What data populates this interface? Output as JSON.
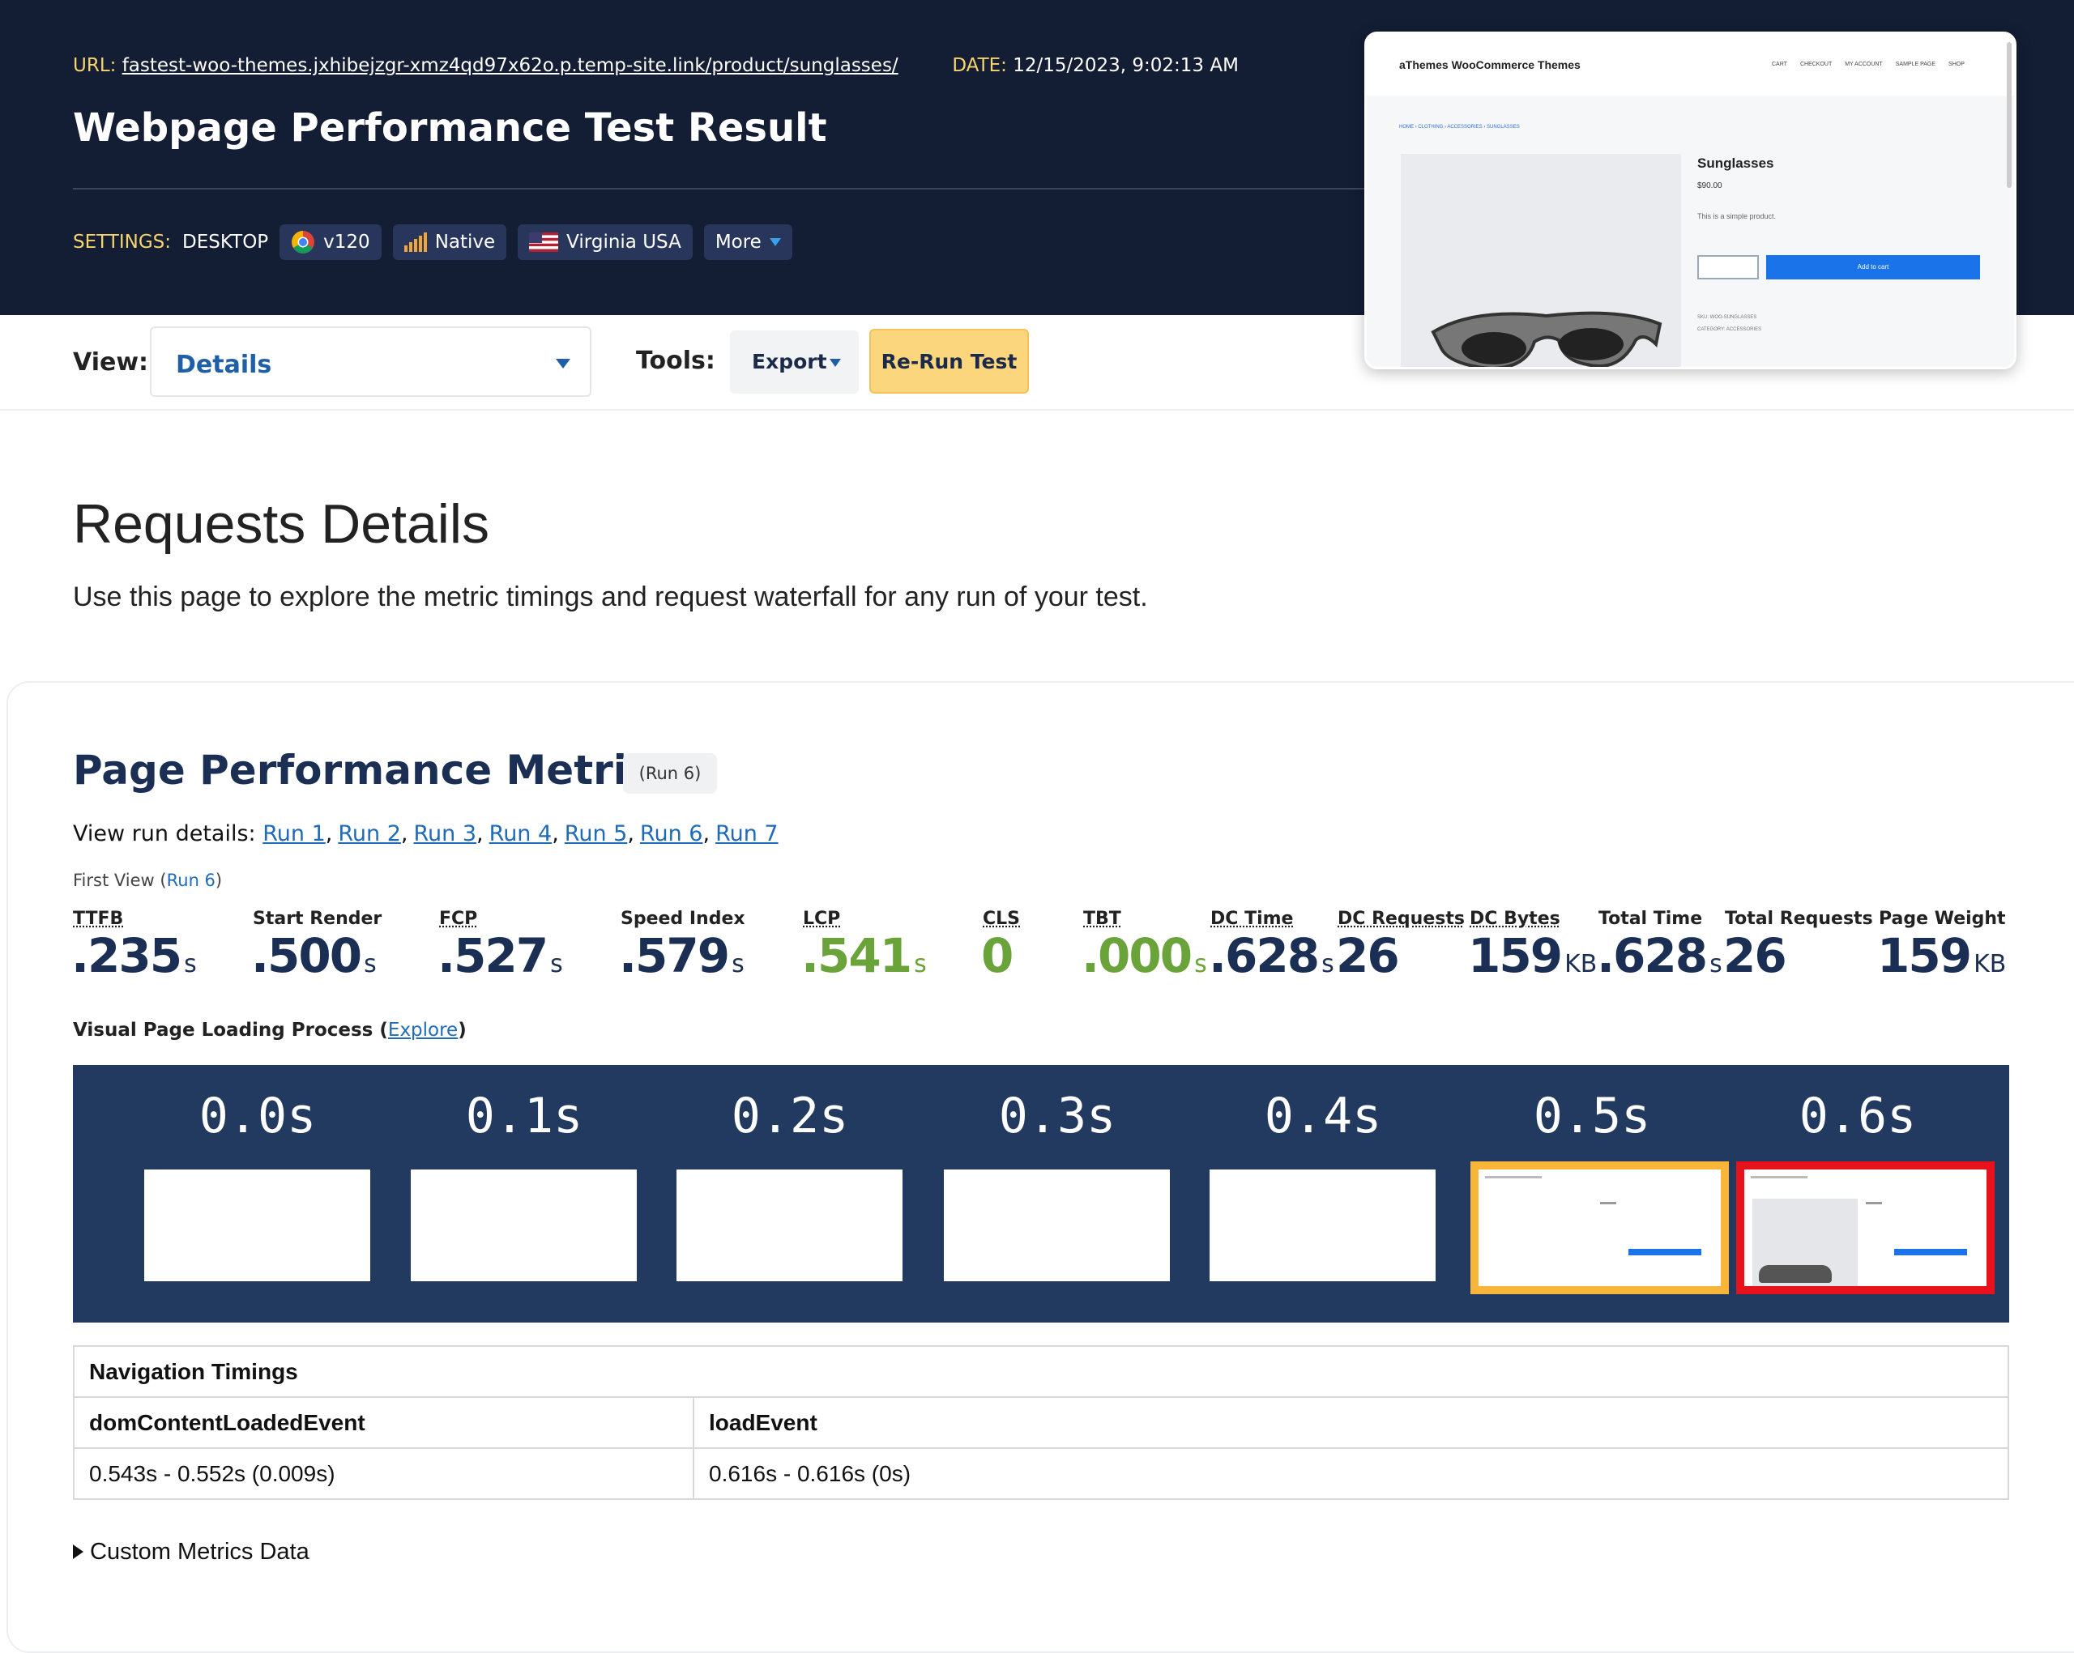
{
  "header": {
    "url_label": "URL:",
    "url": "fastest-woo-themes.jxhibejzgr-xmz4qd97x62o.p.temp-site.link/product/sunglasses/",
    "date_label": "DATE:",
    "date": "12/15/2023, 9:02:13 AM",
    "title": "Webpage Performance Test Result",
    "settings_label": "SETTINGS:",
    "device": "DESKTOP",
    "browser": "v120",
    "connection": "Native",
    "location": "Virginia USA",
    "more": "More"
  },
  "thumbnail": {
    "site": "aThemes WooCommerce Themes",
    "nav": [
      "CART",
      "CHECKOUT",
      "MY ACCOUNT",
      "SAMPLE PAGE",
      "SHOP"
    ],
    "breadcrumb": "HOME › CLOTHING › ACCESSORIES › SUNGLASSES",
    "product": "Sunglasses",
    "price": "$90.00",
    "description": "This is a simple product.",
    "button": "Add to cart",
    "sku": "SKU: WOO-SUNGLASSES",
    "category": "CATEGORY: ACCESSORIES"
  },
  "toolbar": {
    "view_label": "View:",
    "view_value": "Details",
    "tools_label": "Tools:",
    "export": "Export",
    "rerun": "Re-Run Test"
  },
  "intro": {
    "heading": "Requests Details",
    "description": "Use this page to explore the metric timings and request waterfall for any run of your test."
  },
  "metrics_section": {
    "heading": "Page Performance Metrics",
    "run_badge": "(Run 6)",
    "runs_label": "View run details:",
    "runs": [
      "Run 1",
      "Run 2",
      "Run 3",
      "Run 4",
      "Run 5",
      "Run 6",
      "Run 7"
    ],
    "first_view_label": "First View",
    "first_view_run": "Run 6",
    "metrics": [
      {
        "label": "TTFB",
        "value": ".235",
        "unit": "s",
        "abbr": true
      },
      {
        "label": "Start Render",
        "value": ".500",
        "unit": "s"
      },
      {
        "label": "FCP",
        "value": ".527",
        "unit": "s",
        "abbr": true
      },
      {
        "label": "Speed Index",
        "value": ".579",
        "unit": "s"
      },
      {
        "label": "LCP",
        "value": ".541",
        "unit": "s",
        "abbr": true,
        "color": "#6aa33a"
      },
      {
        "label": "CLS",
        "value": "0",
        "abbr": true,
        "color": "#6aa33a"
      },
      {
        "label": "TBT",
        "value": ".000",
        "unit": "s",
        "abbr": true,
        "color": "#6aa33a"
      },
      {
        "label": "DC Time",
        "value": ".628",
        "unit": "s",
        "abbr": true
      },
      {
        "label": "DC Requests",
        "value": "26",
        "abbr": true
      },
      {
        "label": "DC Bytes",
        "value": "159",
        "unit": "KB",
        "abbr": true
      },
      {
        "label": "Total Time",
        "value": ".628",
        "unit": "s"
      },
      {
        "label": "Total Requests",
        "value": "26"
      },
      {
        "label": "Page Weight",
        "value": "159",
        "unit": "KB"
      }
    ],
    "filmstrip_label": "Visual Page Loading Process",
    "filmstrip_link": "Explore",
    "frames": [
      {
        "time": "0.0s"
      },
      {
        "time": "0.1s"
      },
      {
        "time": "0.2s"
      },
      {
        "time": "0.3s"
      },
      {
        "time": "0.4s"
      },
      {
        "time": "0.5s",
        "border": "#f7b53a"
      },
      {
        "time": "0.6s",
        "border": "#e8121d"
      }
    ]
  },
  "navigation_timings": {
    "title": "Navigation Timings",
    "columns": [
      {
        "name": "domContentLoadedEvent",
        "value": "0.543s - 0.552s (0.009s)"
      },
      {
        "name": "loadEvent",
        "value": "0.616s - 0.616s (0s)"
      }
    ]
  },
  "custom_metrics": "Custom Metrics Data"
}
